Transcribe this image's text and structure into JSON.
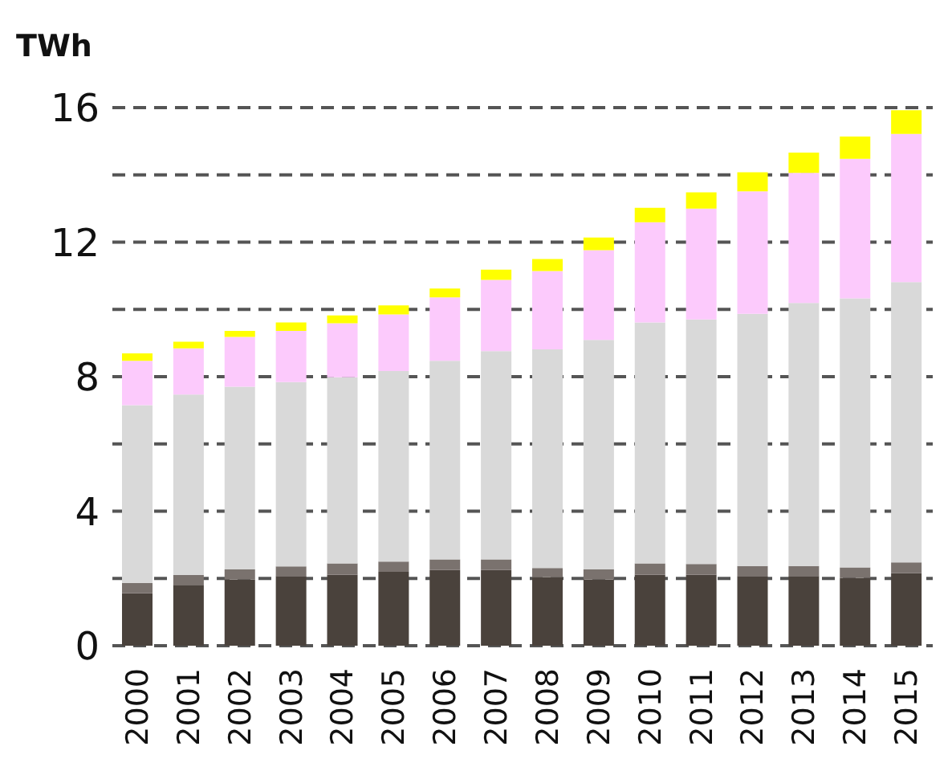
{
  "chart_data": {
    "type": "bar",
    "stacked": true,
    "ylabel": "TWh",
    "categories": [
      "2000",
      "2001",
      "2002",
      "2003",
      "2004",
      "2005",
      "2006",
      "2007",
      "2008",
      "2009",
      "2010",
      "2011",
      "2012",
      "2013",
      "2014",
      "2015"
    ],
    "series": [
      {
        "color": "#4a423c",
        "values": [
          1.56,
          1.81,
          1.97,
          2.07,
          2.11,
          2.2,
          2.25,
          2.25,
          2.04,
          1.97,
          2.11,
          2.11,
          2.07,
          2.07,
          2.02,
          2.16
        ]
      },
      {
        "color": "#7a726e",
        "values": [
          0.31,
          0.29,
          0.3,
          0.29,
          0.34,
          0.3,
          0.32,
          0.32,
          0.27,
          0.3,
          0.34,
          0.32,
          0.3,
          0.3,
          0.31,
          0.32
        ]
      },
      {
        "color": "#d9d9d9",
        "values": [
          5.28,
          5.37,
          5.43,
          5.48,
          5.53,
          5.67,
          5.9,
          6.19,
          6.5,
          6.82,
          7.16,
          7.27,
          7.5,
          7.82,
          8.0,
          8.33
        ]
      },
      {
        "color": "#fccafc",
        "values": [
          1.32,
          1.37,
          1.48,
          1.52,
          1.61,
          1.68,
          1.89,
          2.12,
          2.33,
          2.67,
          2.98,
          3.3,
          3.64,
          3.87,
          4.15,
          4.41
        ]
      },
      {
        "color": "#ffff00",
        "values": [
          0.22,
          0.2,
          0.18,
          0.25,
          0.23,
          0.27,
          0.26,
          0.3,
          0.36,
          0.38,
          0.43,
          0.48,
          0.57,
          0.6,
          0.66,
          0.7
        ]
      }
    ],
    "ylim": [
      0,
      16
    ],
    "yticks": [
      0,
      {
        "value": 2,
        "label": null
      },
      4,
      {
        "value": 6,
        "label": null
      },
      8,
      {
        "value": 10,
        "label": null
      },
      12,
      {
        "value": 14,
        "label": null
      },
      16
    ],
    "grid": "y",
    "legend": false
  }
}
